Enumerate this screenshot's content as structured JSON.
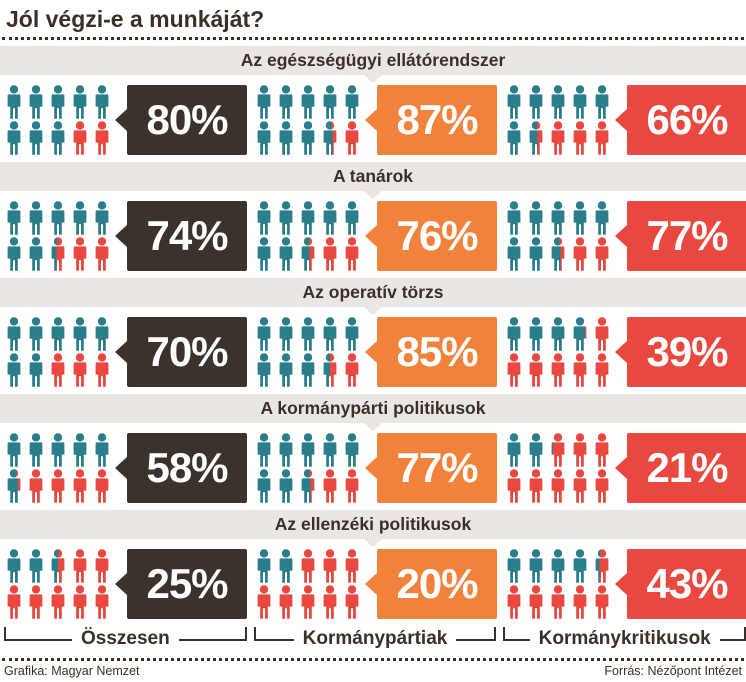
{
  "title": "Jól végzi-e a munkáját?",
  "colors": {
    "ink": "#3b3028",
    "band": "#e9e6e3",
    "approve": "#2a7e8c",
    "disapprove": "#e8483f"
  },
  "columns": [
    {
      "label": "Összesen",
      "box_color": "#3b332b"
    },
    {
      "label": "Kormánypártiak",
      "box_color": "#f0823c"
    },
    {
      "label": "Kormánykritikusok",
      "box_color": "#e8483f"
    }
  ],
  "chart_data": {
    "type": "pictogram-bar",
    "title": "Jól végzi-e a munkáját?",
    "unit": "%",
    "icons_per_group": 10,
    "legend_position": "bottom",
    "categories": [
      "Az egészségügyi ellátórendszer",
      "A tanárok",
      "Az operatív törzs",
      "A kormánypárti politikusok",
      "Az ellenzéki politikusok"
    ],
    "series": [
      {
        "name": "Összesen",
        "values": [
          80,
          74,
          70,
          58,
          25
        ]
      },
      {
        "name": "Kormánypártiak",
        "values": [
          87,
          76,
          85,
          77,
          20
        ]
      },
      {
        "name": "Kormánykritikusok",
        "values": [
          66,
          77,
          39,
          21,
          43
        ]
      }
    ]
  },
  "footer": {
    "left": "Grafika: Magyar Nemzet",
    "right": "Forrás: Nézőpont Intézet"
  }
}
